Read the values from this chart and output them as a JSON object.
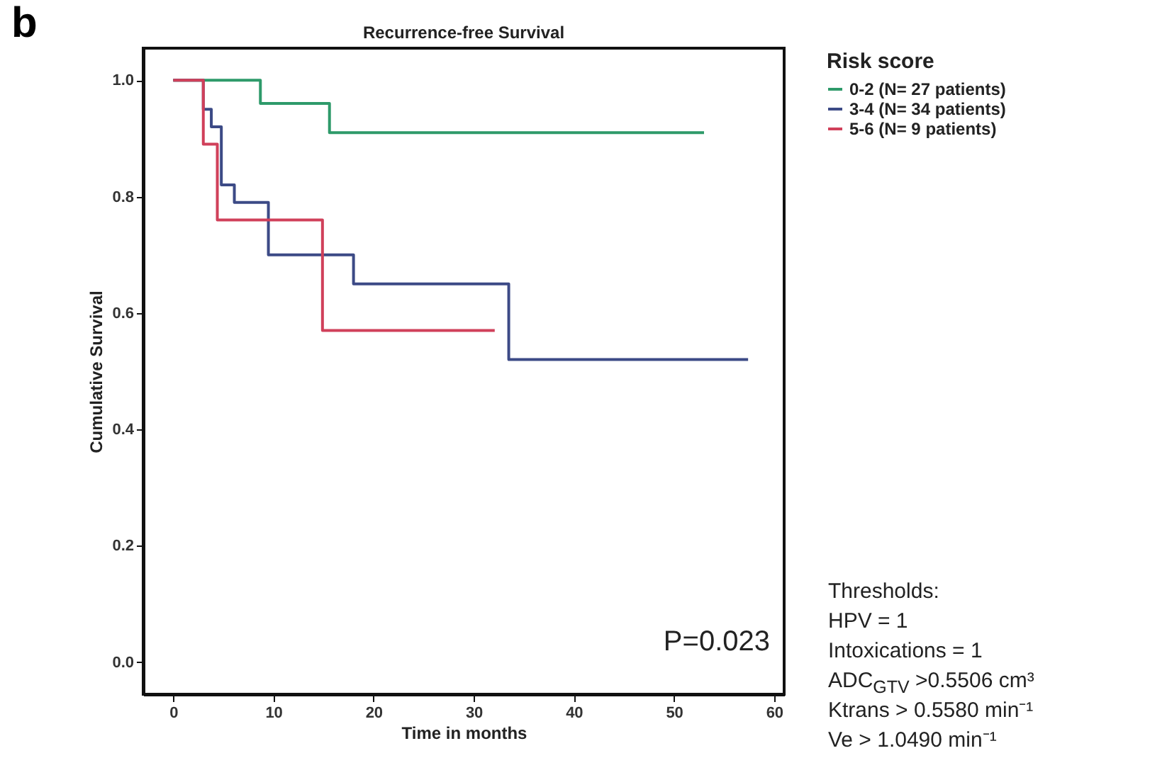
{
  "chart_data": {
    "type": "step",
    "title": "Recurrence-free Survival",
    "xlabel": "Time in months",
    "ylabel": "Cumulative Survival",
    "legend_title": "Risk score",
    "series": [
      {
        "name": "0-2  (N= 27 patients)",
        "color": "#2e9a6a",
        "x": [
          0,
          8.7,
          15.6,
          53
        ],
        "values": [
          1.0,
          0.96,
          0.91,
          0.91
        ]
      },
      {
        "name": "3-4  (N= 34 patients)",
        "color": "#3c4a86",
        "x": [
          0,
          3.0,
          3.8,
          4.8,
          6.1,
          9.5,
          18.0,
          33.5,
          57.4
        ],
        "values": [
          1.0,
          0.95,
          0.92,
          0.82,
          0.79,
          0.7,
          0.65,
          0.52,
          0.52
        ]
      },
      {
        "name": "5-6  (N= 9 patients)",
        "color": "#d0405a",
        "x": [
          0,
          3.0,
          4.4,
          14.9,
          32.1
        ],
        "values": [
          1.0,
          0.89,
          0.76,
          0.57,
          0.57
        ]
      }
    ],
    "xlim": [
      -3,
      61
    ],
    "ylim": [
      -0.055,
      1.055
    ],
    "xticks": [
      0,
      10,
      20,
      30,
      40,
      50,
      60
    ],
    "yticks": [
      {
        "value": 0,
        "label": "0.0"
      },
      {
        "value": 0.2,
        "label": "0.2"
      },
      {
        "value": 0.4,
        "label": "0.4"
      },
      {
        "value": 0.6,
        "label": "0.6"
      },
      {
        "value": 0.8,
        "label": "0.8"
      },
      {
        "value": 1,
        "label": "1.0"
      }
    ],
    "grid": false,
    "legend": "top right",
    "annotations": [
      "b",
      "P=0.023",
      "Thresholds:",
      "HPV = 1",
      "Intoxications = 1",
      "ADC$_{GTV}$ >0.5506 cm³",
      "Ktrans > 0.5580 min⁻¹",
      "Ve > 1.0490 min⁻¹"
    ]
  }
}
